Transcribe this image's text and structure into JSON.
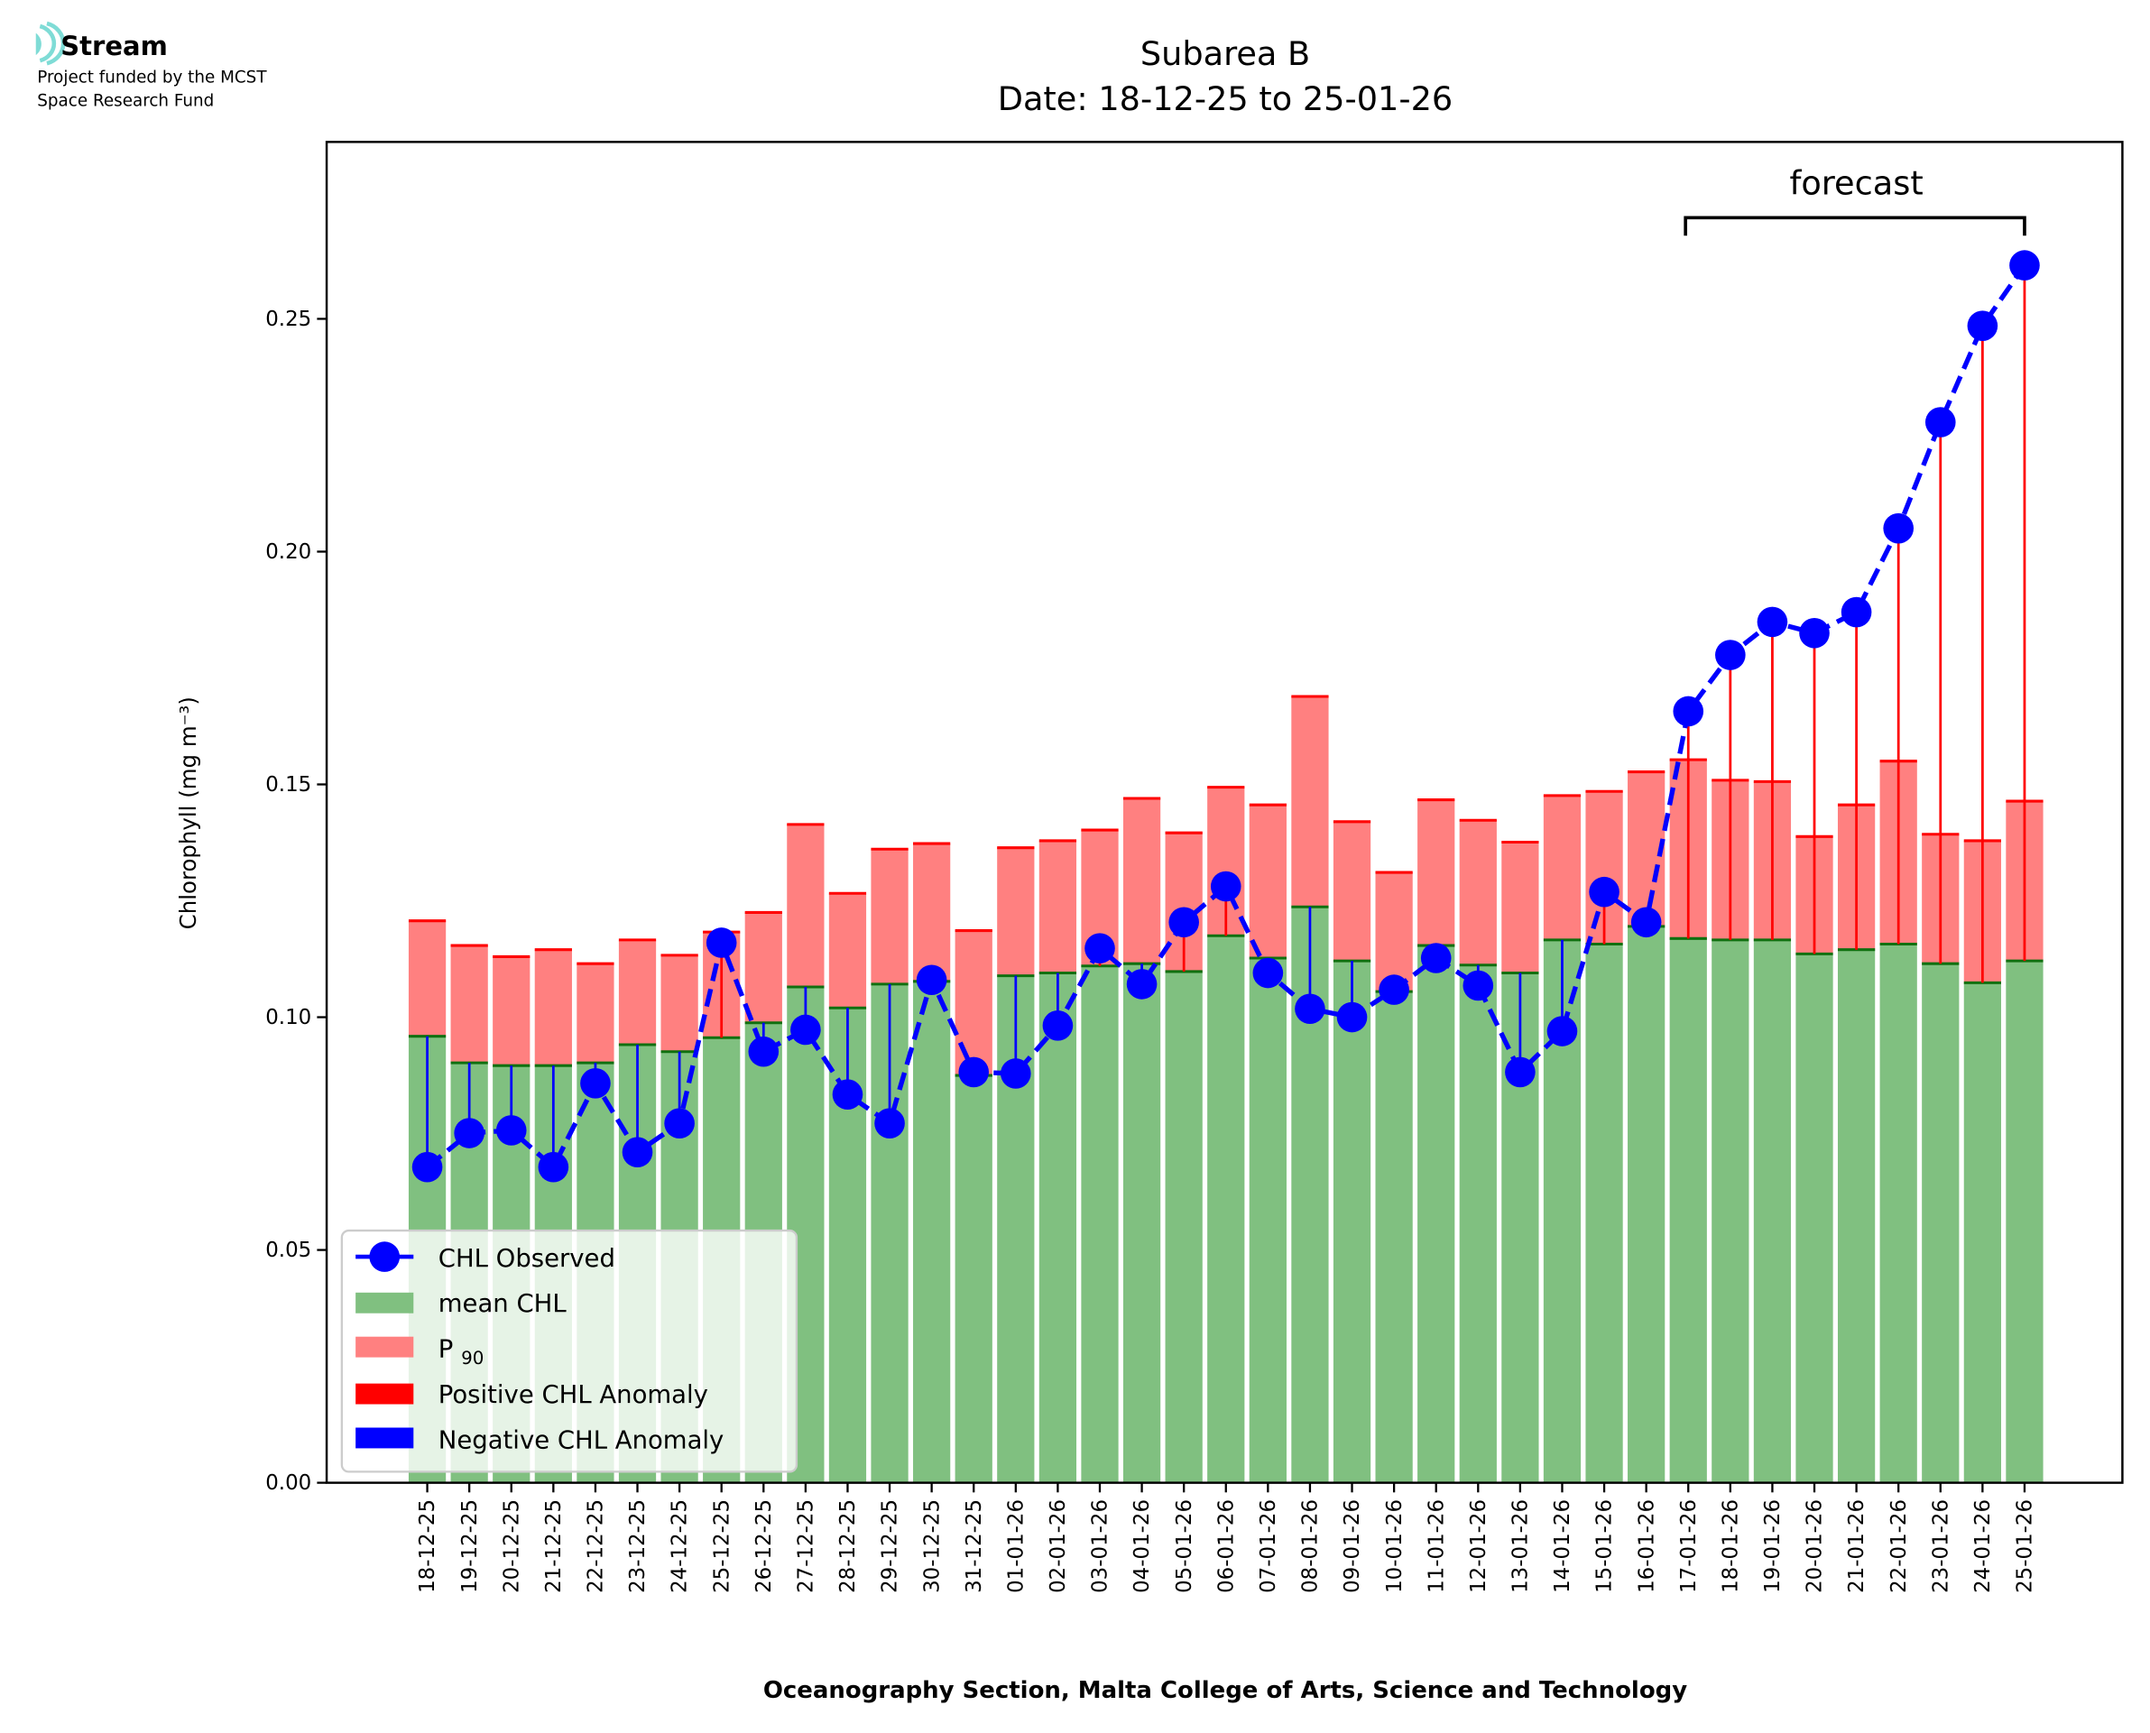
{
  "logo": {
    "name": "Stream",
    "line1": "Project funded by the MCST",
    "line2": "Space Research Fund"
  },
  "colors": {
    "mean": "#80c080",
    "mean_edge": "#107010",
    "p90": "#ff8080",
    "p90_edge": "#ff0000",
    "observed": "#0000ff",
    "positive": "#ff0000",
    "negative": "#0000ff"
  },
  "chart_data": {
    "type": "bar",
    "title": "Subarea B",
    "subtitle": "Date: 18-12-25 to 25-01-26",
    "xlabel": "Oceanography Section, Malta College of Arts, Science and Technology",
    "ylabel": "Chlorophyll (mg m⁻³)",
    "ylim": [
      0,
      0.288
    ],
    "yticks": [
      "0.00",
      "0.05",
      "0.10",
      "0.15",
      "0.20",
      "0.25"
    ],
    "forecast_label": "forecast",
    "forecast_start_index": 31,
    "legend": [
      "CHL Observed",
      "mean CHL",
      "P90",
      "Positive CHL Anomaly",
      "Negative CHL Anomaly"
    ],
    "legend_placement": "lower-left",
    "categories": [
      "18-12-25",
      "19-12-25",
      "20-12-25",
      "21-12-25",
      "22-12-25",
      "23-12-25",
      "24-12-25",
      "25-12-25",
      "26-12-25",
      "27-12-25",
      "28-12-25",
      "29-12-25",
      "30-12-25",
      "31-12-25",
      "01-01-26",
      "02-01-26",
      "03-01-26",
      "04-01-26",
      "05-01-26",
      "06-01-26",
      "07-01-26",
      "08-01-26",
      "09-01-26",
      "10-01-26",
      "11-01-26",
      "12-01-26",
      "13-01-26",
      "14-01-26",
      "15-01-26",
      "16-01-26",
      "17-01-26",
      "18-01-26",
      "19-01-26",
      "20-01-26",
      "21-01-26",
      "22-01-26",
      "23-01-26",
      "24-01-26",
      "25-01-26"
    ],
    "series": [
      {
        "name": "mean CHL",
        "values": [
          0.0959,
          0.0902,
          0.0896,
          0.0896,
          0.0902,
          0.0941,
          0.0926,
          0.0956,
          0.0988,
          0.1065,
          0.102,
          0.1071,
          0.1077,
          0.0875,
          0.1089,
          0.1095,
          0.111,
          0.1115,
          0.1098,
          0.1175,
          0.1127,
          0.1237,
          0.1121,
          0.1055,
          0.1154,
          0.1112,
          0.1095,
          0.1166,
          0.1157,
          0.1195,
          0.1169,
          0.1166,
          0.1166,
          0.1136,
          0.1145,
          0.1157,
          0.1115,
          0.1074,
          0.1121
        ]
      },
      {
        "name": "P90",
        "values": [
          0.1207,
          0.1154,
          0.113,
          0.1145,
          0.1115,
          0.1166,
          0.1133,
          0.1183,
          0.1225,
          0.1414,
          0.1266,
          0.1361,
          0.1373,
          0.1186,
          0.1364,
          0.1379,
          0.1402,
          0.147,
          0.1396,
          0.1494,
          0.1456,
          0.1689,
          0.142,
          0.1311,
          0.1467,
          0.1423,
          0.1376,
          0.1476,
          0.1485,
          0.1527,
          0.1553,
          0.1509,
          0.1506,
          0.1388,
          0.1456,
          0.155,
          0.1393,
          0.1379,
          0.1464
        ]
      },
      {
        "name": "CHL Observed",
        "values": [
          0.0678,
          0.0751,
          0.0757,
          0.0678,
          0.0858,
          0.071,
          0.0772,
          0.116,
          0.0926,
          0.0973,
          0.0834,
          0.0772,
          0.108,
          0.0882,
          0.0879,
          0.0982,
          0.1148,
          0.1071,
          0.1204,
          0.1281,
          0.1095,
          0.1018,
          0.1,
          0.1059,
          0.1127,
          0.1068,
          0.0882,
          0.097,
          0.1269,
          0.1204,
          0.1657,
          0.1778,
          0.1849,
          0.1825,
          0.187,
          0.205,
          0.2278,
          0.2485,
          0.2615
        ]
      }
    ]
  }
}
